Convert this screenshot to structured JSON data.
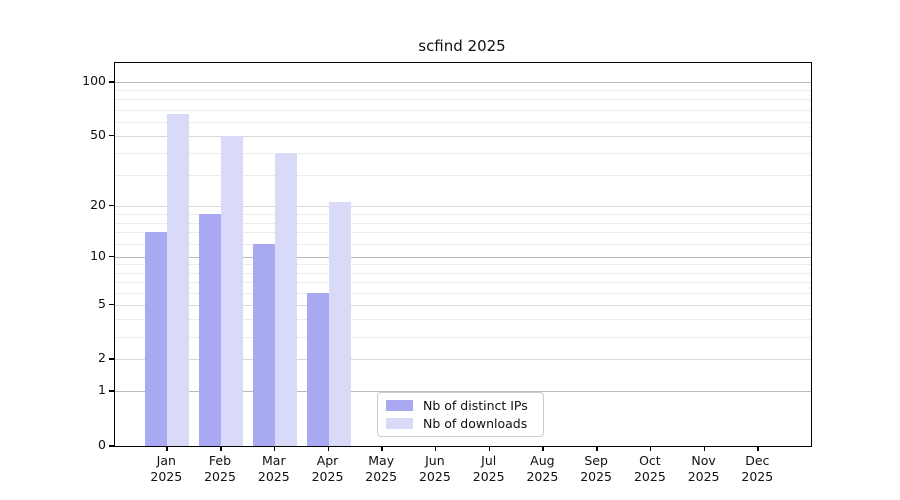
{
  "figure": {
    "title": "scfind 2025",
    "background_color": "#ffffff"
  },
  "chart_data": {
    "type": "bar",
    "title": "scfind 2025",
    "categories": [
      "Jan",
      "Feb",
      "Mar",
      "Apr",
      "May",
      "Jun",
      "Jul",
      "Aug",
      "Sep",
      "Oct",
      "Nov",
      "Dec"
    ],
    "year_label": "2025",
    "series": [
      {
        "name": "Nb of distinct IPs",
        "color": "#a8a8f3",
        "values": [
          14,
          18,
          12,
          6,
          null,
          null,
          null,
          null,
          null,
          null,
          null,
          null
        ]
      },
      {
        "name": "Nb of downloads",
        "color": "#d9d9f8",
        "values": [
          66,
          50,
          40,
          21,
          null,
          null,
          null,
          null,
          null,
          null,
          null,
          null
        ]
      }
    ],
    "xlabel": "",
    "ylabel": "",
    "y_axis": {
      "scale": "log10(value+1)",
      "ticks": [
        0,
        1,
        2,
        5,
        10,
        20,
        50,
        100
      ],
      "power_ticks": [
        1,
        10,
        100
      ],
      "top_value": 128
    },
    "minor_gridlines": [
      3,
      4,
      6,
      7,
      8,
      9,
      12,
      14,
      16,
      18,
      30,
      40,
      60,
      70,
      80,
      90
    ],
    "grid": "on",
    "legend": {
      "position": "bottom-center-inside",
      "entries": [
        "Nb of distinct IPs",
        "Nb of downloads"
      ]
    }
  }
}
